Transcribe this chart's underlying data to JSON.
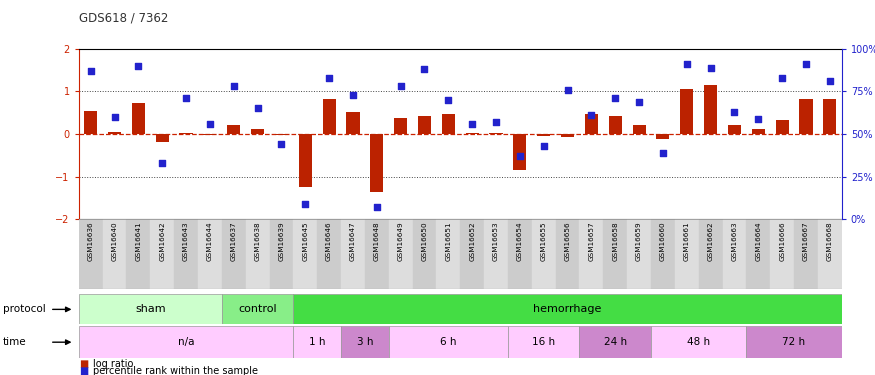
{
  "title": "GDS618 / 7362",
  "samples": [
    "GSM16636",
    "GSM16640",
    "GSM16641",
    "GSM16642",
    "GSM16643",
    "GSM16644",
    "GSM16637",
    "GSM16638",
    "GSM16639",
    "GSM16645",
    "GSM16646",
    "GSM16647",
    "GSM16648",
    "GSM16649",
    "GSM16650",
    "GSM16651",
    "GSM16652",
    "GSM16653",
    "GSM16654",
    "GSM16655",
    "GSM16656",
    "GSM16657",
    "GSM16658",
    "GSM16659",
    "GSM16660",
    "GSM16661",
    "GSM16662",
    "GSM16663",
    "GSM16664",
    "GSM16666",
    "GSM16667",
    "GSM16668"
  ],
  "log_ratio": [
    0.55,
    0.05,
    0.72,
    -0.18,
    0.02,
    -0.02,
    0.22,
    0.12,
    -0.03,
    -1.25,
    0.82,
    0.52,
    -1.35,
    0.38,
    0.42,
    0.48,
    0.03,
    0.03,
    -0.85,
    -0.05,
    -0.08,
    0.48,
    0.42,
    0.22,
    -0.12,
    1.05,
    1.15,
    0.22,
    0.12,
    0.32,
    0.82,
    0.82
  ],
  "percentile": [
    87,
    60,
    90,
    33,
    71,
    56,
    78,
    65,
    44,
    9,
    83,
    73,
    7,
    78,
    88,
    70,
    56,
    57,
    37,
    43,
    76,
    61,
    71,
    69,
    39,
    91,
    89,
    63,
    59,
    83,
    91,
    81
  ],
  "bar_color": "#bb2200",
  "dot_color": "#2222cc",
  "ylim": [
    -2,
    2
  ],
  "right_ylim": [
    0,
    100
  ],
  "right_yticks": [
    0,
    25,
    50,
    75,
    100
  ],
  "right_yticklabels": [
    "0%",
    "25%",
    "50%",
    "75%",
    "100%"
  ],
  "left_yticks": [
    -2,
    -1,
    0,
    1,
    2
  ],
  "hline_color": "#cc2200",
  "dotted_color": "#444444",
  "protocol_labels": [
    {
      "label": "sham",
      "start": 0,
      "end": 5,
      "color": "#ccffcc"
    },
    {
      "label": "control",
      "start": 6,
      "end": 8,
      "color": "#88ee88"
    },
    {
      "label": "hemorrhage",
      "start": 9,
      "end": 31,
      "color": "#44dd44"
    }
  ],
  "time_labels": [
    {
      "label": "n/a",
      "start": 0,
      "end": 8,
      "color": "#ffccff"
    },
    {
      "label": "1 h",
      "start": 9,
      "end": 10,
      "color": "#ffccff"
    },
    {
      "label": "3 h",
      "start": 11,
      "end": 12,
      "color": "#dd88dd"
    },
    {
      "label": "6 h",
      "start": 13,
      "end": 17,
      "color": "#ffccff"
    },
    {
      "label": "16 h",
      "start": 18,
      "end": 20,
      "color": "#ffccff"
    },
    {
      "label": "24 h",
      "start": 21,
      "end": 23,
      "color": "#dd88dd"
    },
    {
      "label": "48 h",
      "start": 24,
      "end": 27,
      "color": "#ffccff"
    },
    {
      "label": "72 h",
      "start": 28,
      "end": 31,
      "color": "#dd88dd"
    }
  ],
  "legend_items": [
    {
      "color": "#bb2200",
      "label": "log ratio"
    },
    {
      "color": "#2222cc",
      "label": "percentile rank within the sample"
    }
  ],
  "bg_color": "#ffffff",
  "plot_bg_color": "#ffffff",
  "xtick_even_color": "#cccccc",
  "xtick_odd_color": "#dddddd"
}
